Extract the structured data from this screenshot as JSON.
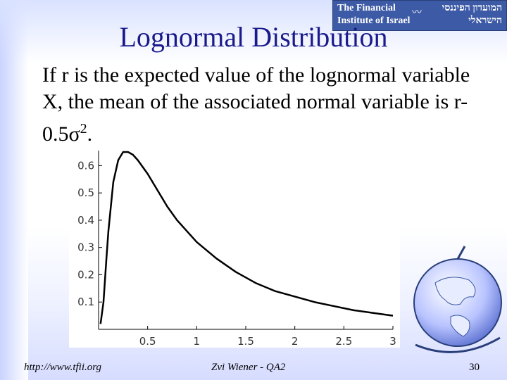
{
  "logo": {
    "english": "The Financial Institute of Israel",
    "hebrew": "המועדון הפיננסי הישראלי"
  },
  "slide": {
    "title": "Lognormal Distribution",
    "body_prefix": "If r is the expected value of the lognormal variable X, the mean of the associated normal variable is r-0.5",
    "sigma": "σ",
    "sup": "2",
    "body_suffix": "."
  },
  "footer": {
    "url": "http://www.tfii.org",
    "author": "Zvi Wiener - QA2",
    "page": "30"
  },
  "colors": {
    "title": "#1a1a8c",
    "curve": "#000000",
    "axis": "#000000"
  },
  "chart_data": {
    "type": "line",
    "title": "",
    "xlabel": "",
    "ylabel": "",
    "xlim": [
      0,
      3
    ],
    "ylim": [
      0,
      0.65
    ],
    "xticks": [
      0.5,
      1,
      1.5,
      2,
      2.5,
      3
    ],
    "xtick_labels": [
      "0.5",
      "1",
      "1.5",
      "2",
      "2.5",
      "3"
    ],
    "yticks": [
      0.1,
      0.2,
      0.3,
      0.4,
      0.5,
      0.6
    ],
    "ytick_labels": [
      "0.1",
      "0.2",
      "0.3",
      "0.4",
      "0.5",
      "0.6"
    ],
    "grid": false,
    "series": [
      {
        "x": [
          0.02,
          0.05,
          0.08,
          0.1,
          0.15,
          0.2,
          0.25,
          0.3,
          0.35,
          0.4,
          0.5,
          0.6,
          0.7,
          0.8,
          0.9,
          1.0,
          1.2,
          1.4,
          1.6,
          1.8,
          2.0,
          2.2,
          2.4,
          2.6,
          2.8,
          3.0
        ],
        "y": [
          0.02,
          0.1,
          0.26,
          0.36,
          0.54,
          0.62,
          0.65,
          0.65,
          0.64,
          0.62,
          0.57,
          0.51,
          0.45,
          0.4,
          0.36,
          0.32,
          0.26,
          0.21,
          0.17,
          0.14,
          0.12,
          0.1,
          0.085,
          0.07,
          0.06,
          0.05
        ]
      }
    ]
  }
}
